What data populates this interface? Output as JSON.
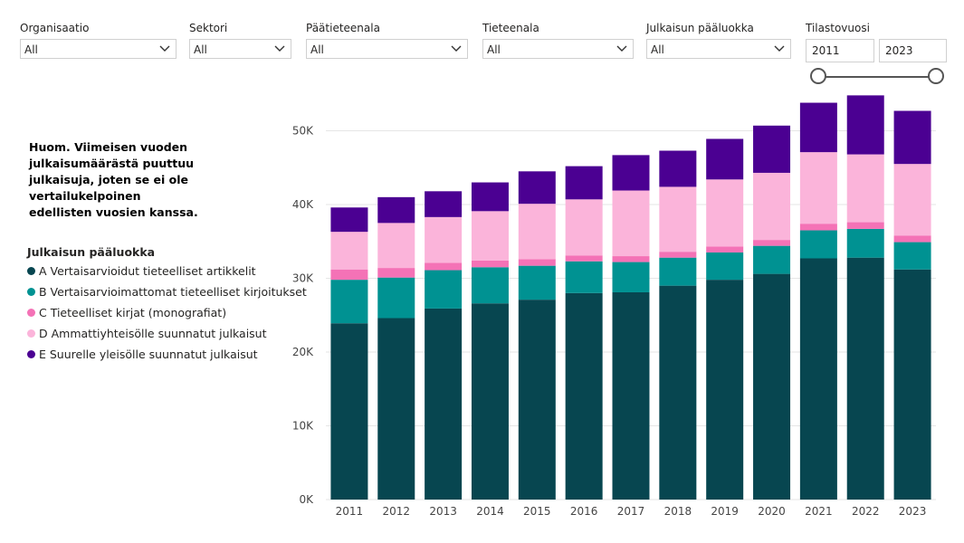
{
  "filters": [
    {
      "label": "Organisaatio",
      "value": "All",
      "left": 22,
      "width": 173
    },
    {
      "label": "Sektori",
      "value": "All",
      "left": 209,
      "width": 113
    },
    {
      "label": "Päätieteenala",
      "value": "All",
      "left": 338,
      "width": 179
    },
    {
      "label": "Tieteenala",
      "value": "All",
      "left": 533,
      "width": 167
    },
    {
      "label": "Julkaisun pääluokka",
      "value": "All",
      "left": 714,
      "width": 160
    }
  ],
  "year_filter": {
    "label": "Tilastovuosi",
    "start": "2011",
    "end": "2023"
  },
  "note": "Huom. Viimeisen vuoden\njulkaisumäärästä puuttuu\njulkaisuja,  joten se ei ole\nvertailukelpoinen\nedellisten vuosien kanssa.",
  "legend": {
    "title": "Julkaisun pääluokka"
  },
  "chart_data": {
    "type": "bar",
    "stacked": true,
    "categories": [
      "2011",
      "2012",
      "2013",
      "2014",
      "2015",
      "2016",
      "2017",
      "2018",
      "2019",
      "2020",
      "2021",
      "2022",
      "2023"
    ],
    "series": [
      {
        "name": "A Vertaisarvioidut tieteelliset artikkelit",
        "color": "#074650",
        "values": [
          23900,
          24600,
          25900,
          26600,
          27100,
          28000,
          28100,
          29000,
          29800,
          30600,
          32700,
          32800,
          31200
        ]
      },
      {
        "name": "B Vertaisarvioimattomat tieteelliset kirjoitukset",
        "color": "#009292",
        "values": [
          5900,
          5500,
          5200,
          4900,
          4600,
          4300,
          4100,
          3800,
          3700,
          3800,
          3800,
          3900,
          3700
        ]
      },
      {
        "name": "C Tieteelliset kirjat (monografiat)",
        "color": "#f472b6",
        "values": [
          1400,
          1300,
          1000,
          900,
          900,
          800,
          800,
          800,
          800,
          800,
          900,
          900,
          900
        ]
      },
      {
        "name": "D Ammattiyhteisölle suunnatut julkaisut",
        "color": "#fbb4da",
        "values": [
          5100,
          6100,
          6200,
          6700,
          7500,
          7600,
          8900,
          8800,
          9100,
          9100,
          9700,
          9200,
          9700
        ]
      },
      {
        "name": "E Suurelle yleisölle suunnatut julkaisut",
        "color": "#4b0092",
        "values": [
          3300,
          3500,
          3500,
          3900,
          4400,
          4500,
          4800,
          4900,
          5500,
          6400,
          6700,
          8000,
          7200
        ]
      }
    ],
    "yticks": [
      "0K",
      "10K",
      "20K",
      "30K",
      "40K",
      "50K"
    ],
    "ylim": [
      0,
      55000
    ],
    "grid": true,
    "legend_position": "left"
  }
}
